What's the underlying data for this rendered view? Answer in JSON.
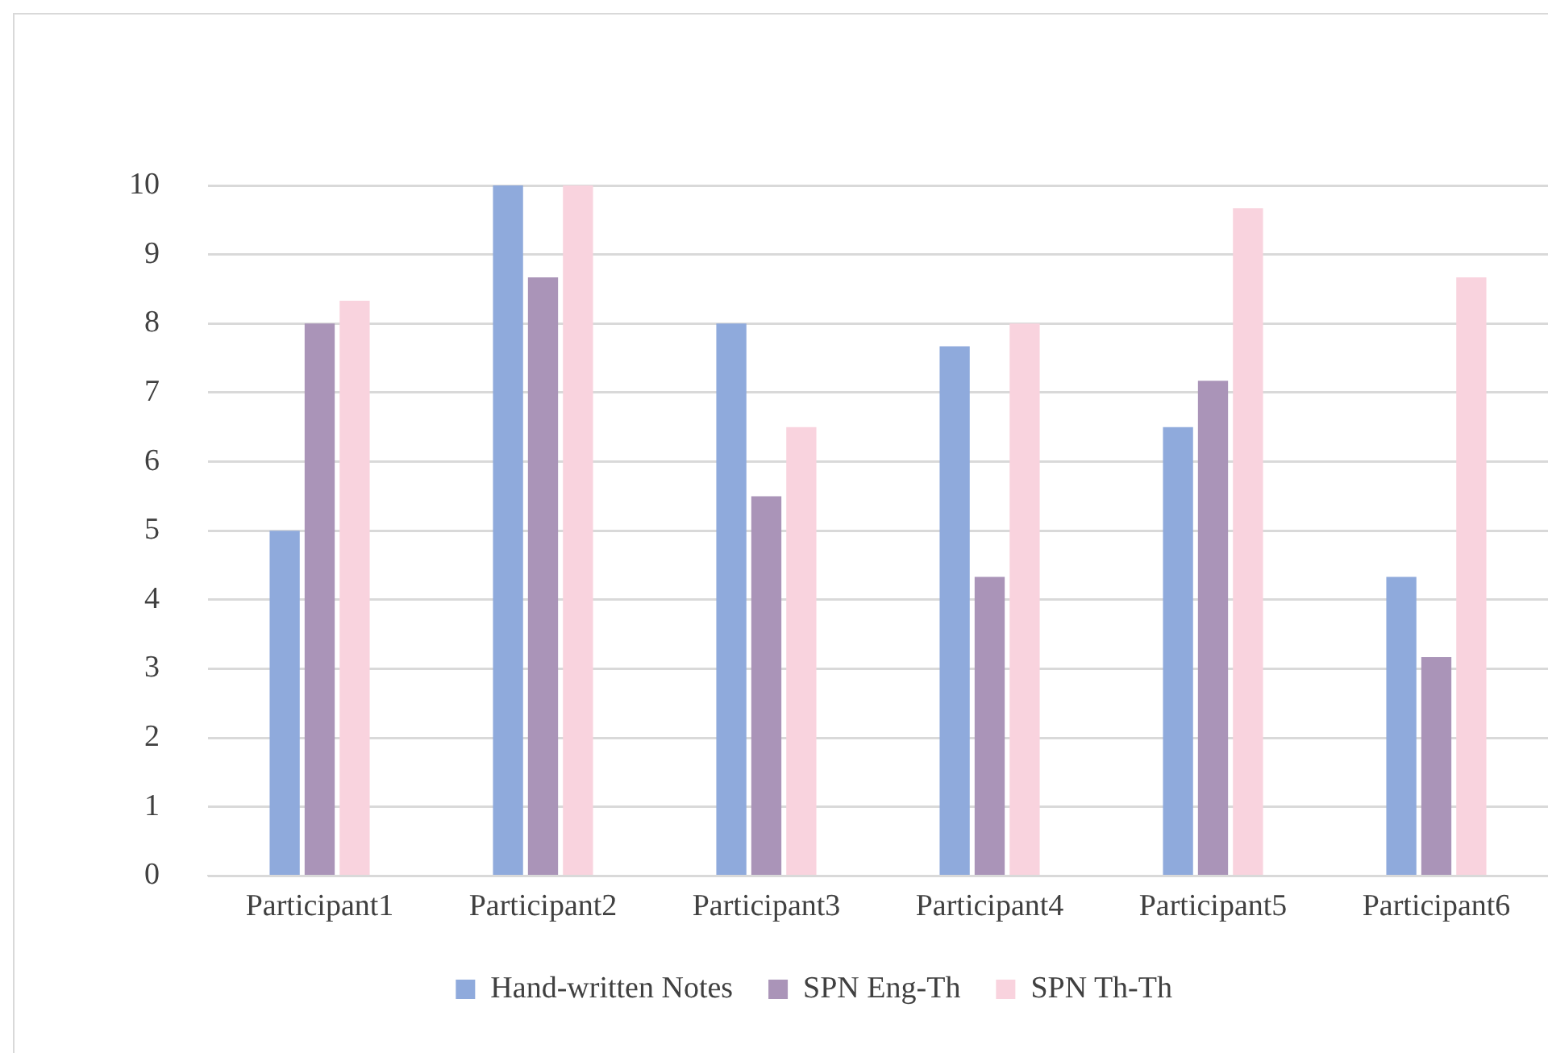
{
  "chart_data": {
    "type": "bar",
    "categories": [
      "Participant1",
      "Participant2",
      "Participant3",
      "Participant4",
      "Participant5",
      "Participant6"
    ],
    "series": [
      {
        "name": "Hand-written Notes",
        "color": "#8faadc",
        "values": [
          5,
          10,
          8,
          7.67,
          6.5,
          4.33
        ]
      },
      {
        "name": "SPN Eng-Th",
        "color": "#aa94b8",
        "values": [
          8,
          8.67,
          5.5,
          4.33,
          7.17,
          3.17
        ]
      },
      {
        "name": "SPN Th-Th",
        "color": "#f9d3de",
        "values": [
          8.33,
          10,
          6.5,
          8,
          9.67,
          8.67
        ]
      }
    ],
    "ylim": [
      0,
      10
    ],
    "yticks": [
      0,
      1,
      2,
      3,
      4,
      5,
      6,
      7,
      8,
      9,
      10
    ],
    "grid": "y",
    "legend": "bottom"
  }
}
